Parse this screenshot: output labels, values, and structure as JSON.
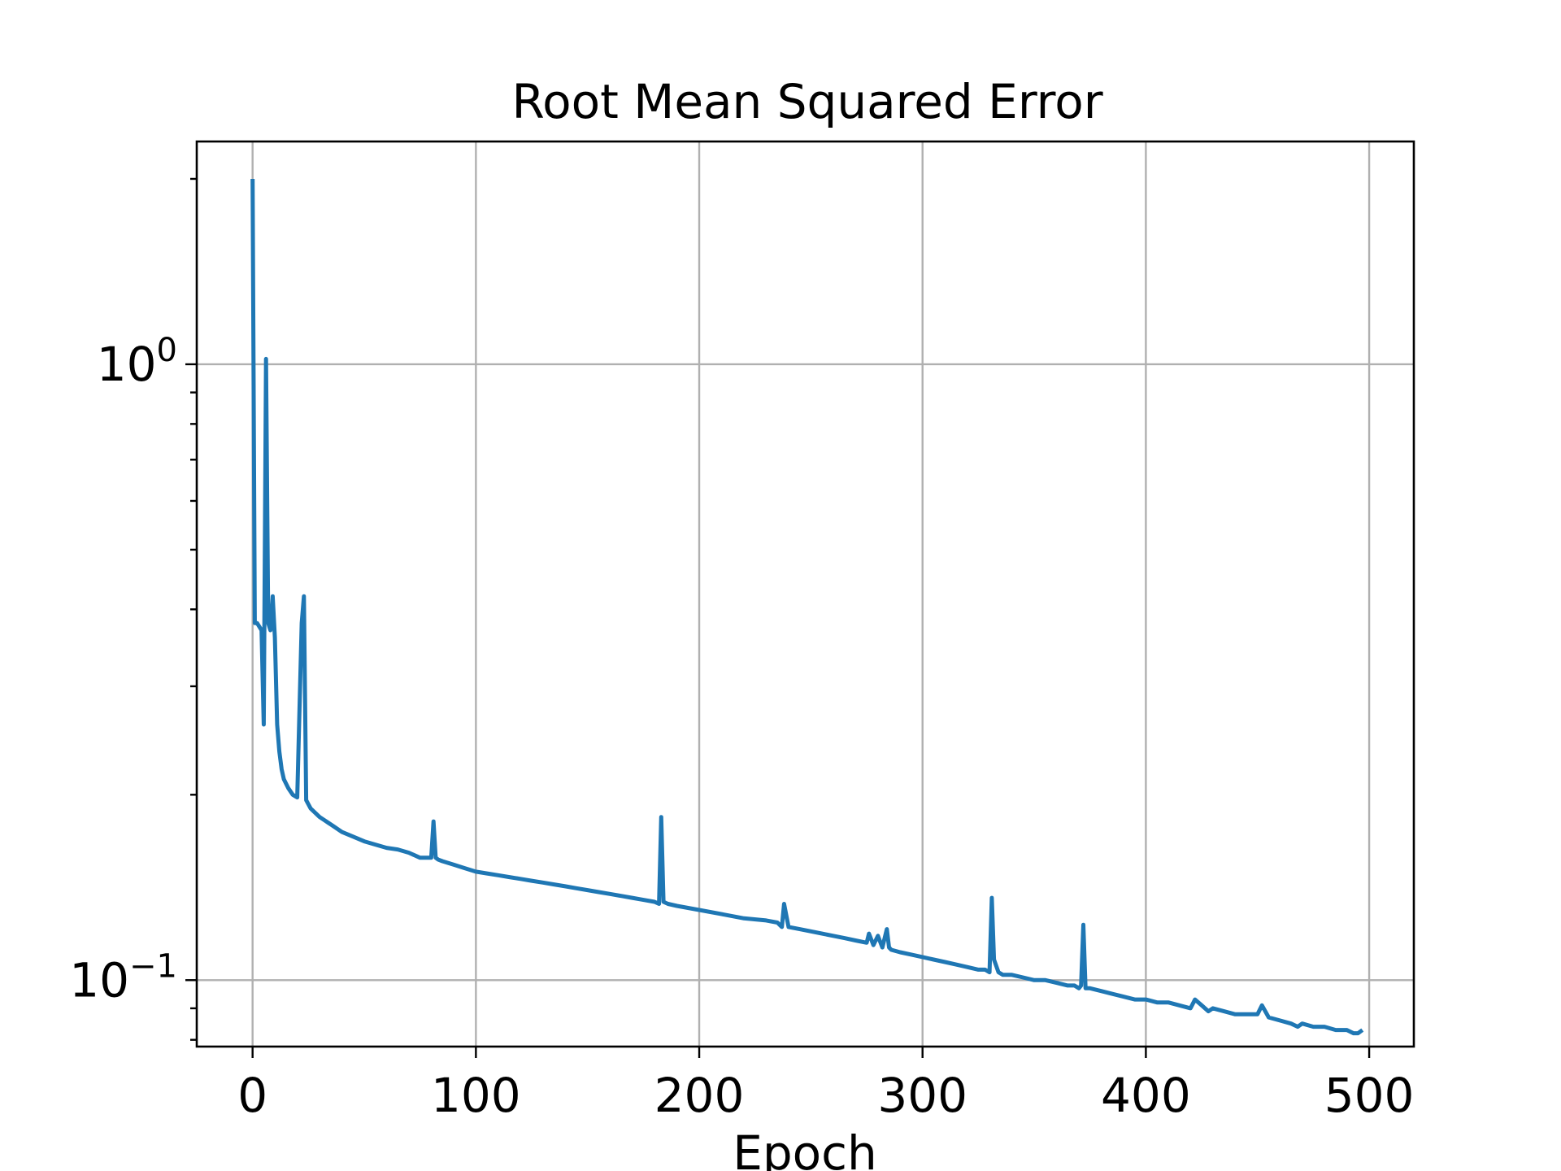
{
  "chart_data": {
    "type": "line",
    "title": "Root Mean Squared Error",
    "xlabel": "Epoch",
    "ylabel": "",
    "xlim": [
      -25,
      520
    ],
    "ylim": [
      0.078,
      2.3
    ],
    "yscale": "log",
    "grid": true,
    "x_ticks": [
      {
        "value": 0,
        "label": "0"
      },
      {
        "value": 100,
        "label": "100"
      },
      {
        "value": 200,
        "label": "200"
      },
      {
        "value": 300,
        "label": "300"
      },
      {
        "value": 400,
        "label": "400"
      },
      {
        "value": 500,
        "label": "500"
      }
    ],
    "y_ticks": [
      {
        "value": 1,
        "base": "10",
        "exp": "0"
      },
      {
        "value": 0.1,
        "base": "10",
        "exp": "−1"
      }
    ],
    "y_minor_ticks": [
      0.08,
      0.09,
      0.2,
      0.3,
      0.4,
      0.5,
      0.6,
      0.7,
      0.8,
      0.9,
      2.0
    ],
    "series": [
      {
        "color": "#1f77b4",
        "x": [
          0,
          1,
          2,
          4,
          5,
          6,
          7,
          8,
          9,
          10,
          11,
          12,
          13,
          14,
          16,
          18,
          20,
          22,
          23,
          24,
          25,
          26,
          28,
          30,
          32,
          34,
          36,
          38,
          40,
          45,
          50,
          55,
          60,
          65,
          70,
          75,
          80,
          81,
          82,
          83,
          85,
          90,
          95,
          100,
          105,
          110,
          115,
          120,
          125,
          130,
          135,
          140,
          145,
          150,
          155,
          160,
          165,
          170,
          175,
          180,
          182,
          183,
          184,
          186,
          190,
          195,
          200,
          210,
          220,
          230,
          235,
          236,
          237,
          238,
          240,
          245,
          250,
          255,
          260,
          265,
          270,
          275,
          276,
          278,
          280,
          282,
          284,
          285,
          286,
          290,
          295,
          300,
          305,
          310,
          315,
          320,
          325,
          328,
          330,
          331,
          332,
          334,
          336,
          340,
          345,
          350,
          355,
          360,
          365,
          368,
          370,
          371,
          372,
          373,
          375,
          380,
          385,
          390,
          395,
          400,
          405,
          410,
          415,
          420,
          422,
          425,
          428,
          430,
          435,
          440,
          445,
          450,
          452,
          455,
          460,
          465,
          468,
          470,
          475,
          480,
          485,
          490,
          493,
          495,
          497
        ],
        "y": [
          2.0,
          0.38,
          0.38,
          0.37,
          0.26,
          1.02,
          0.38,
          0.37,
          0.42,
          0.36,
          0.26,
          0.235,
          0.22,
          0.212,
          0.205,
          0.2,
          0.198,
          0.38,
          0.42,
          0.196,
          0.193,
          0.19,
          0.187,
          0.184,
          0.182,
          0.18,
          0.178,
          0.176,
          0.174,
          0.171,
          0.168,
          0.166,
          0.164,
          0.163,
          0.161,
          0.158,
          0.158,
          0.181,
          0.158,
          0.157,
          0.156,
          0.154,
          0.152,
          0.15,
          0.149,
          0.148,
          0.147,
          0.146,
          0.145,
          0.144,
          0.143,
          0.142,
          0.141,
          0.14,
          0.139,
          0.138,
          0.137,
          0.136,
          0.135,
          0.134,
          0.133,
          0.184,
          0.134,
          0.133,
          0.132,
          0.131,
          0.13,
          0.128,
          0.126,
          0.125,
          0.124,
          0.123,
          0.122,
          0.133,
          0.122,
          0.121,
          0.12,
          0.119,
          0.118,
          0.117,
          0.116,
          0.115,
          0.119,
          0.114,
          0.118,
          0.113,
          0.121,
          0.113,
          0.112,
          0.111,
          0.11,
          0.109,
          0.108,
          0.107,
          0.106,
          0.105,
          0.104,
          0.104,
          0.103,
          0.136,
          0.108,
          0.103,
          0.102,
          0.102,
          0.101,
          0.1,
          0.1,
          0.099,
          0.098,
          0.098,
          0.097,
          0.098,
          0.123,
          0.097,
          0.097,
          0.096,
          0.095,
          0.094,
          0.093,
          0.093,
          0.092,
          0.092,
          0.091,
          0.09,
          0.093,
          0.091,
          0.089,
          0.09,
          0.089,
          0.088,
          0.088,
          0.088,
          0.091,
          0.087,
          0.086,
          0.085,
          0.084,
          0.085,
          0.084,
          0.084,
          0.083,
          0.083,
          0.082,
          0.082,
          0.083
        ]
      }
    ]
  }
}
